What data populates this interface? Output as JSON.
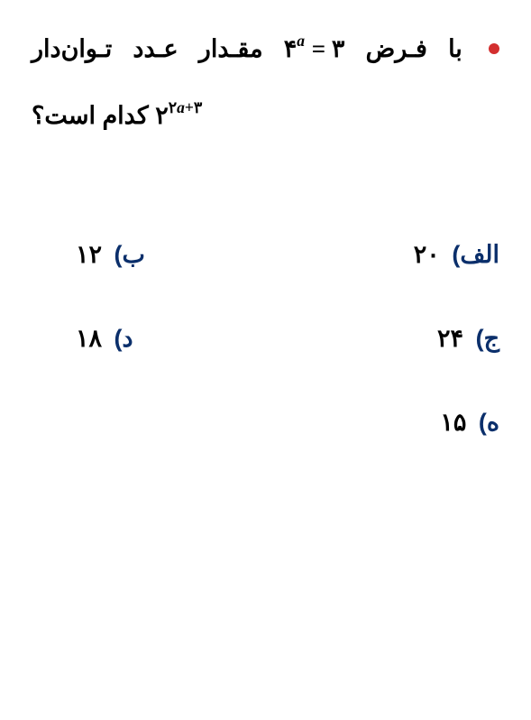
{
  "colors": {
    "bullet": "#d32f2f",
    "question_text": "#000000",
    "option_label": "#0b2f6b"
  },
  "question": {
    "part1_pre": "با فـرض",
    "equation_base": "۴",
    "equation_exp": "a",
    "equation_eq": " = ۳",
    "part1_post": "مقـدار عـدد تـوان‌دار",
    "part2_base": "۲",
    "part2_exp": "۲a+۳",
    "part2_rest": " کدام است؟"
  },
  "options": {
    "a": {
      "label": "الف)",
      "value": "۲۰"
    },
    "b": {
      "label": "ب)",
      "value": "۱۲"
    },
    "c": {
      "label": "ج)",
      "value": "۲۴"
    },
    "d": {
      "label": "د)",
      "value": "۱۸"
    },
    "e": {
      "label": "ه)",
      "value": "۱۵"
    }
  }
}
